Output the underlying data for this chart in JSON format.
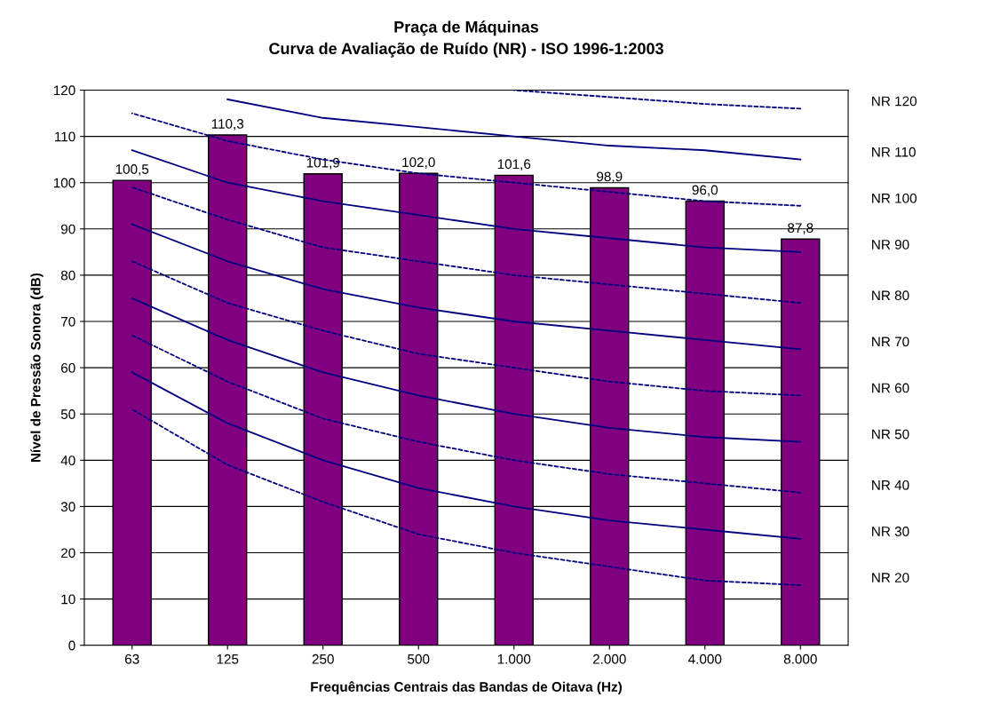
{
  "chart_data": {
    "type": "bar",
    "title": "Praça de Máquinas",
    "subtitle": "Curva de Avaliação de Ruído (NR) - ISO 1996-1:2003",
    "xlabel": "Frequências Centrais das Bandas de Oitava (Hz)",
    "ylabel": "Nível de Pressão Sonora (dB)",
    "categories": [
      "63",
      "125",
      "250",
      "500",
      "1.000",
      "2.000",
      "4.000",
      "8.000"
    ],
    "ylim": [
      0,
      120
    ],
    "yticks": [
      0,
      10,
      20,
      30,
      40,
      50,
      60,
      70,
      80,
      90,
      100,
      110,
      120
    ],
    "grid": "y",
    "legend": false,
    "series": [
      {
        "color": "#800080",
        "values": [
          100.5,
          110.3,
          101.9,
          102.0,
          101.6,
          98.9,
          96.0,
          87.8
        ],
        "value_labels": [
          "100,5",
          "110,3",
          "101,9",
          "102,0",
          "101,6",
          "98,9",
          "96,0",
          "87,8"
        ]
      },
      {
        "type": "line",
        "name": "NR 120",
        "color": "#000080",
        "line_style": "dashed",
        "values": [
          null,
          null,
          null,
          null,
          120,
          118.5,
          117,
          116
        ]
      },
      {
        "type": "line",
        "name": "NR 110",
        "color": "#000080",
        "line_style": "solid",
        "values": [
          null,
          118,
          114,
          112,
          110,
          108,
          107,
          105
        ]
      },
      {
        "type": "line",
        "name": "NR 100",
        "color": "#000080",
        "line_style": "dashed",
        "values": [
          115,
          109,
          105,
          102,
          100,
          98,
          96,
          95
        ]
      },
      {
        "type": "line",
        "name": "NR 90",
        "color": "#000080",
        "line_style": "solid",
        "values": [
          107,
          100,
          96,
          93,
          90,
          88,
          86,
          85
        ]
      },
      {
        "type": "line",
        "name": "NR 80",
        "color": "#000080",
        "line_style": "dashed",
        "values": [
          99,
          92,
          86,
          83,
          80,
          78,
          76,
          74
        ]
      },
      {
        "type": "line",
        "name": "NR 70",
        "color": "#000080",
        "line_style": "solid",
        "values": [
          91,
          83,
          77,
          73,
          70,
          68,
          66,
          64
        ]
      },
      {
        "type": "line",
        "name": "NR 60",
        "color": "#000080",
        "line_style": "dashed",
        "values": [
          83,
          74,
          68,
          63,
          60,
          57,
          55,
          54
        ]
      },
      {
        "type": "line",
        "name": "NR 50",
        "color": "#000080",
        "line_style": "solid",
        "values": [
          75,
          66,
          59,
          54,
          50,
          47,
          45,
          44
        ]
      },
      {
        "type": "line",
        "name": "NR 40",
        "color": "#000080",
        "line_style": "dashed",
        "values": [
          67,
          57,
          49,
          44,
          40,
          37,
          35,
          33
        ]
      },
      {
        "type": "line",
        "name": "NR 30",
        "color": "#000080",
        "line_style": "solid",
        "values": [
          59,
          48,
          40,
          34,
          30,
          27,
          25,
          23
        ]
      },
      {
        "type": "line",
        "name": "NR 20",
        "color": "#000080",
        "line_style": "dashed",
        "values": [
          51,
          39,
          31,
          24,
          20,
          17,
          14,
          13
        ]
      }
    ]
  }
}
